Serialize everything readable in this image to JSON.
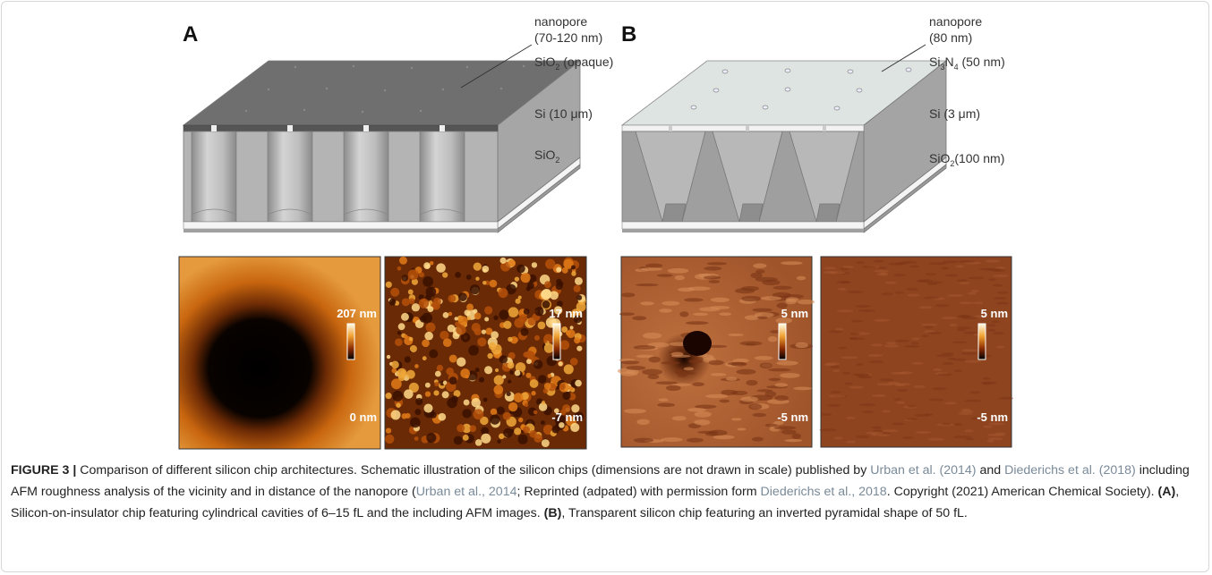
{
  "panels": [
    {
      "label": "A",
      "annotations": [
        [
          {
            "text": "nanopore"
          }
        ],
        [
          {
            "text": "(70-120 nm)"
          }
        ],
        [
          {
            "text": "SiO"
          },
          {
            "sub": "2"
          },
          {
            "text": " (opaque)"
          }
        ],
        [
          {
            "text": "Si (10 μm)"
          }
        ],
        [
          {
            "text": "SiO"
          },
          {
            "sub": "2"
          }
        ]
      ],
      "afm": [
        {
          "max": "207 nm",
          "min": "0 nm"
        },
        {
          "max": "17 nm",
          "min": "-7 nm"
        }
      ]
    },
    {
      "label": "B",
      "annotations": [
        [
          {
            "text": "nanopore"
          }
        ],
        [
          {
            "text": "(80 nm)"
          }
        ],
        [
          {
            "text": "Si"
          },
          {
            "sub": "3"
          },
          {
            "text": "N"
          },
          {
            "sub": "4"
          },
          {
            "text": " (50 nm)"
          }
        ],
        [
          {
            "text": "Si (3 μm)"
          }
        ],
        [
          {
            "text": "SiO"
          },
          {
            "sub": "2"
          },
          {
            "text": "(100 nm)"
          }
        ]
      ],
      "afm": [
        {
          "max": "5 nm",
          "min": "-5 nm"
        },
        {
          "max": "5 nm",
          "min": "-5 nm"
        }
      ]
    }
  ],
  "caption": [
    {
      "bold": "FIGURE 3 |"
    },
    {
      "text": " Comparison of different silicon chip architectures. Schematic illustration of the silicon chips (dimensions are not drawn in scale) published by "
    },
    {
      "link": "Urban et al. (2014)"
    },
    {
      "text": " and "
    },
    {
      "link": "Diederichs et al. (2018)"
    },
    {
      "text": " including AFM roughness analysis of the vicinity and in distance of the nanopore ("
    },
    {
      "link": "Urban et al., 2014"
    },
    {
      "text": "; Reprinted (adpated) with permission form "
    },
    {
      "link": "Diederichs et al., 2018"
    },
    {
      "text": ". Copyright (2021) American Chemical Society). "
    },
    {
      "bold": "(A)"
    },
    {
      "text": ", Silicon-on-insulator chip featuring cylindrical cavities of 6–15 fL and the including AFM images. "
    },
    {
      "bold": "(B)"
    },
    {
      "text": ", Transparent silicon chip featuring an inverted pyramidal shape of 50 fL."
    }
  ]
}
